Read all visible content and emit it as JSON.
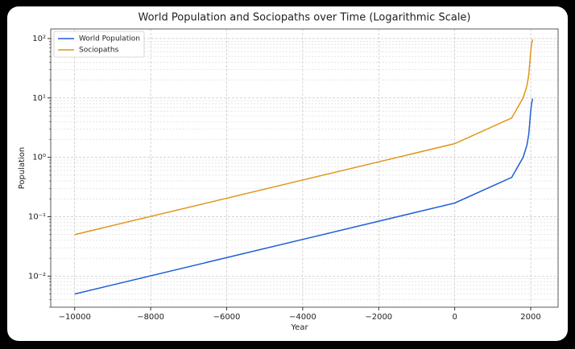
{
  "chart_data": {
    "type": "line",
    "title": "World Population and Sociopaths over Time (Logarithmic Scale)",
    "x_label": "Year",
    "y_label": "Population",
    "x": [
      -10000,
      0,
      1500,
      1800,
      1900,
      1950,
      2000,
      2023,
      2050
    ],
    "series": [
      {
        "name": "World Population",
        "color": "#1f5fd6",
        "values": [
          0.005,
          0.17,
          0.46,
          1.0,
          1.6,
          2.5,
          6.1,
          8.0,
          9.7
        ]
      },
      {
        "name": "Sociopaths",
        "color": "#e0961a",
        "values": [
          0.05,
          1.7,
          4.6,
          10,
          16,
          25,
          61,
          80,
          97
        ]
      }
    ],
    "xlim": [
      -10630,
      2720
    ],
    "xticks": [
      {
        "value": -10000,
        "label": "−10000"
      },
      {
        "value": -8000,
        "label": "−8000"
      },
      {
        "value": -6000,
        "label": "−6000"
      },
      {
        "value": -4000,
        "label": "−4000"
      },
      {
        "value": -2000,
        "label": "−2000"
      },
      0,
      2000
    ],
    "ylim": [
      0.003,
      145
    ],
    "yticks": [
      {
        "value": 0.01,
        "label": "10⁻²"
      },
      {
        "value": 0.1,
        "label": "10⁻¹"
      },
      {
        "value": 1,
        "label": "10⁰"
      },
      {
        "value": 10,
        "label": "10¹"
      },
      {
        "value": 100,
        "label": "10²"
      }
    ],
    "y_log": true,
    "grid": true,
    "minor_grid": true,
    "legend": "upper left"
  }
}
